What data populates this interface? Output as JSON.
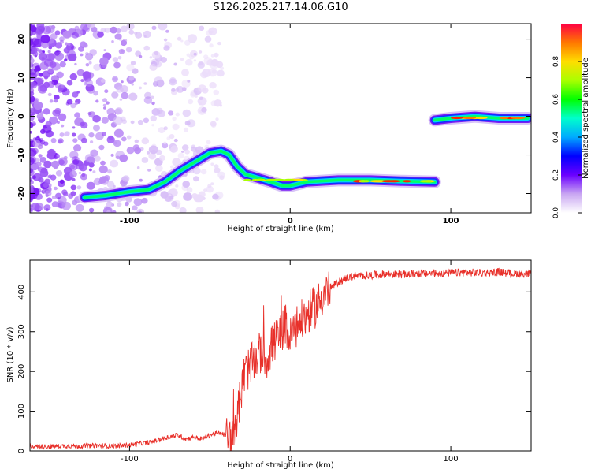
{
  "title": "S126.2025.217.14.06.G10",
  "chart_data": [
    {
      "type": "heatmap",
      "xlabel": "Height of straight line (km)",
      "ylabel": "Frequency (Hz)",
      "xlim": [
        -162,
        150
      ],
      "ylim": [
        -25,
        24
      ],
      "xticks": [
        -100,
        0,
        100
      ],
      "yticks": [
        20,
        10,
        0,
        -10,
        -20
      ],
      "colorbar": {
        "label": "Normalized spectral amplitude",
        "range": [
          0,
          1
        ],
        "ticks": [
          0.0,
          0.2,
          0.4,
          0.6,
          0.8
        ]
      },
      "ridge": [
        {
          "x": -128,
          "y": -21
        },
        {
          "x": -115,
          "y": -20.5
        },
        {
          "x": -100,
          "y": -19.5
        },
        {
          "x": -88,
          "y": -19
        },
        {
          "x": -78,
          "y": -17
        },
        {
          "x": -68,
          "y": -14
        },
        {
          "x": -58,
          "y": -11.5
        },
        {
          "x": -50,
          "y": -9.5
        },
        {
          "x": -43,
          "y": -9
        },
        {
          "x": -38,
          "y": -10
        },
        {
          "x": -33,
          "y": -13
        },
        {
          "x": -28,
          "y": -15
        },
        {
          "x": -20,
          "y": -16
        },
        {
          "x": -12,
          "y": -17
        },
        {
          "x": -5,
          "y": -18
        },
        {
          "x": 0,
          "y": -18
        },
        {
          "x": 10,
          "y": -17
        },
        {
          "x": 30,
          "y": -16.5
        },
        {
          "x": 50,
          "y": -16.5
        },
        {
          "x": 70,
          "y": -16.8
        },
        {
          "x": 90,
          "y": -17
        },
        {
          "x": 90,
          "y": -1
        },
        {
          "x": 100,
          "y": -0.5
        },
        {
          "x": 115,
          "y": 0
        },
        {
          "x": 130,
          "y": -0.5
        },
        {
          "x": 148,
          "y": -0.5
        }
      ]
    },
    {
      "type": "line",
      "xlabel": "Height of straight line (km)",
      "ylabel": "SNR (10 * v/v)",
      "xlim": [
        -162,
        150
      ],
      "ylim": [
        0,
        480
      ],
      "xticks": [
        -100,
        0,
        100
      ],
      "yticks": [
        0,
        100,
        200,
        300,
        400
      ],
      "color": "#e8302a",
      "series": [
        {
          "x": [
            -162,
            -150,
            -140,
            -130,
            -120,
            -110,
            -100,
            -95,
            -90,
            -85,
            -80,
            -75,
            -70,
            -65,
            -60,
            -55,
            -50,
            -45,
            -40,
            -36,
            -33,
            -30,
            -28,
            -25,
            -22,
            -20,
            -18,
            -15,
            -12,
            -10,
            -8,
            -5,
            -3,
            0,
            2,
            5,
            8,
            10,
            12,
            15,
            18,
            20,
            25,
            30,
            35,
            40,
            50,
            60,
            70,
            80,
            90,
            100,
            110,
            120,
            130,
            140,
            150
          ],
          "y": [
            12,
            11,
            13,
            12,
            14,
            12,
            15,
            18,
            20,
            24,
            30,
            36,
            40,
            30,
            35,
            30,
            40,
            45,
            40,
            30,
            90,
            160,
            200,
            210,
            230,
            240,
            250,
            230,
            260,
            275,
            280,
            300,
            320,
            280,
            300,
            320,
            330,
            340,
            350,
            360,
            375,
            390,
            410,
            425,
            435,
            440,
            442,
            445,
            444,
            446,
            447,
            448,
            449,
            448,
            450,
            446,
            445
          ]
        }
      ]
    }
  ]
}
